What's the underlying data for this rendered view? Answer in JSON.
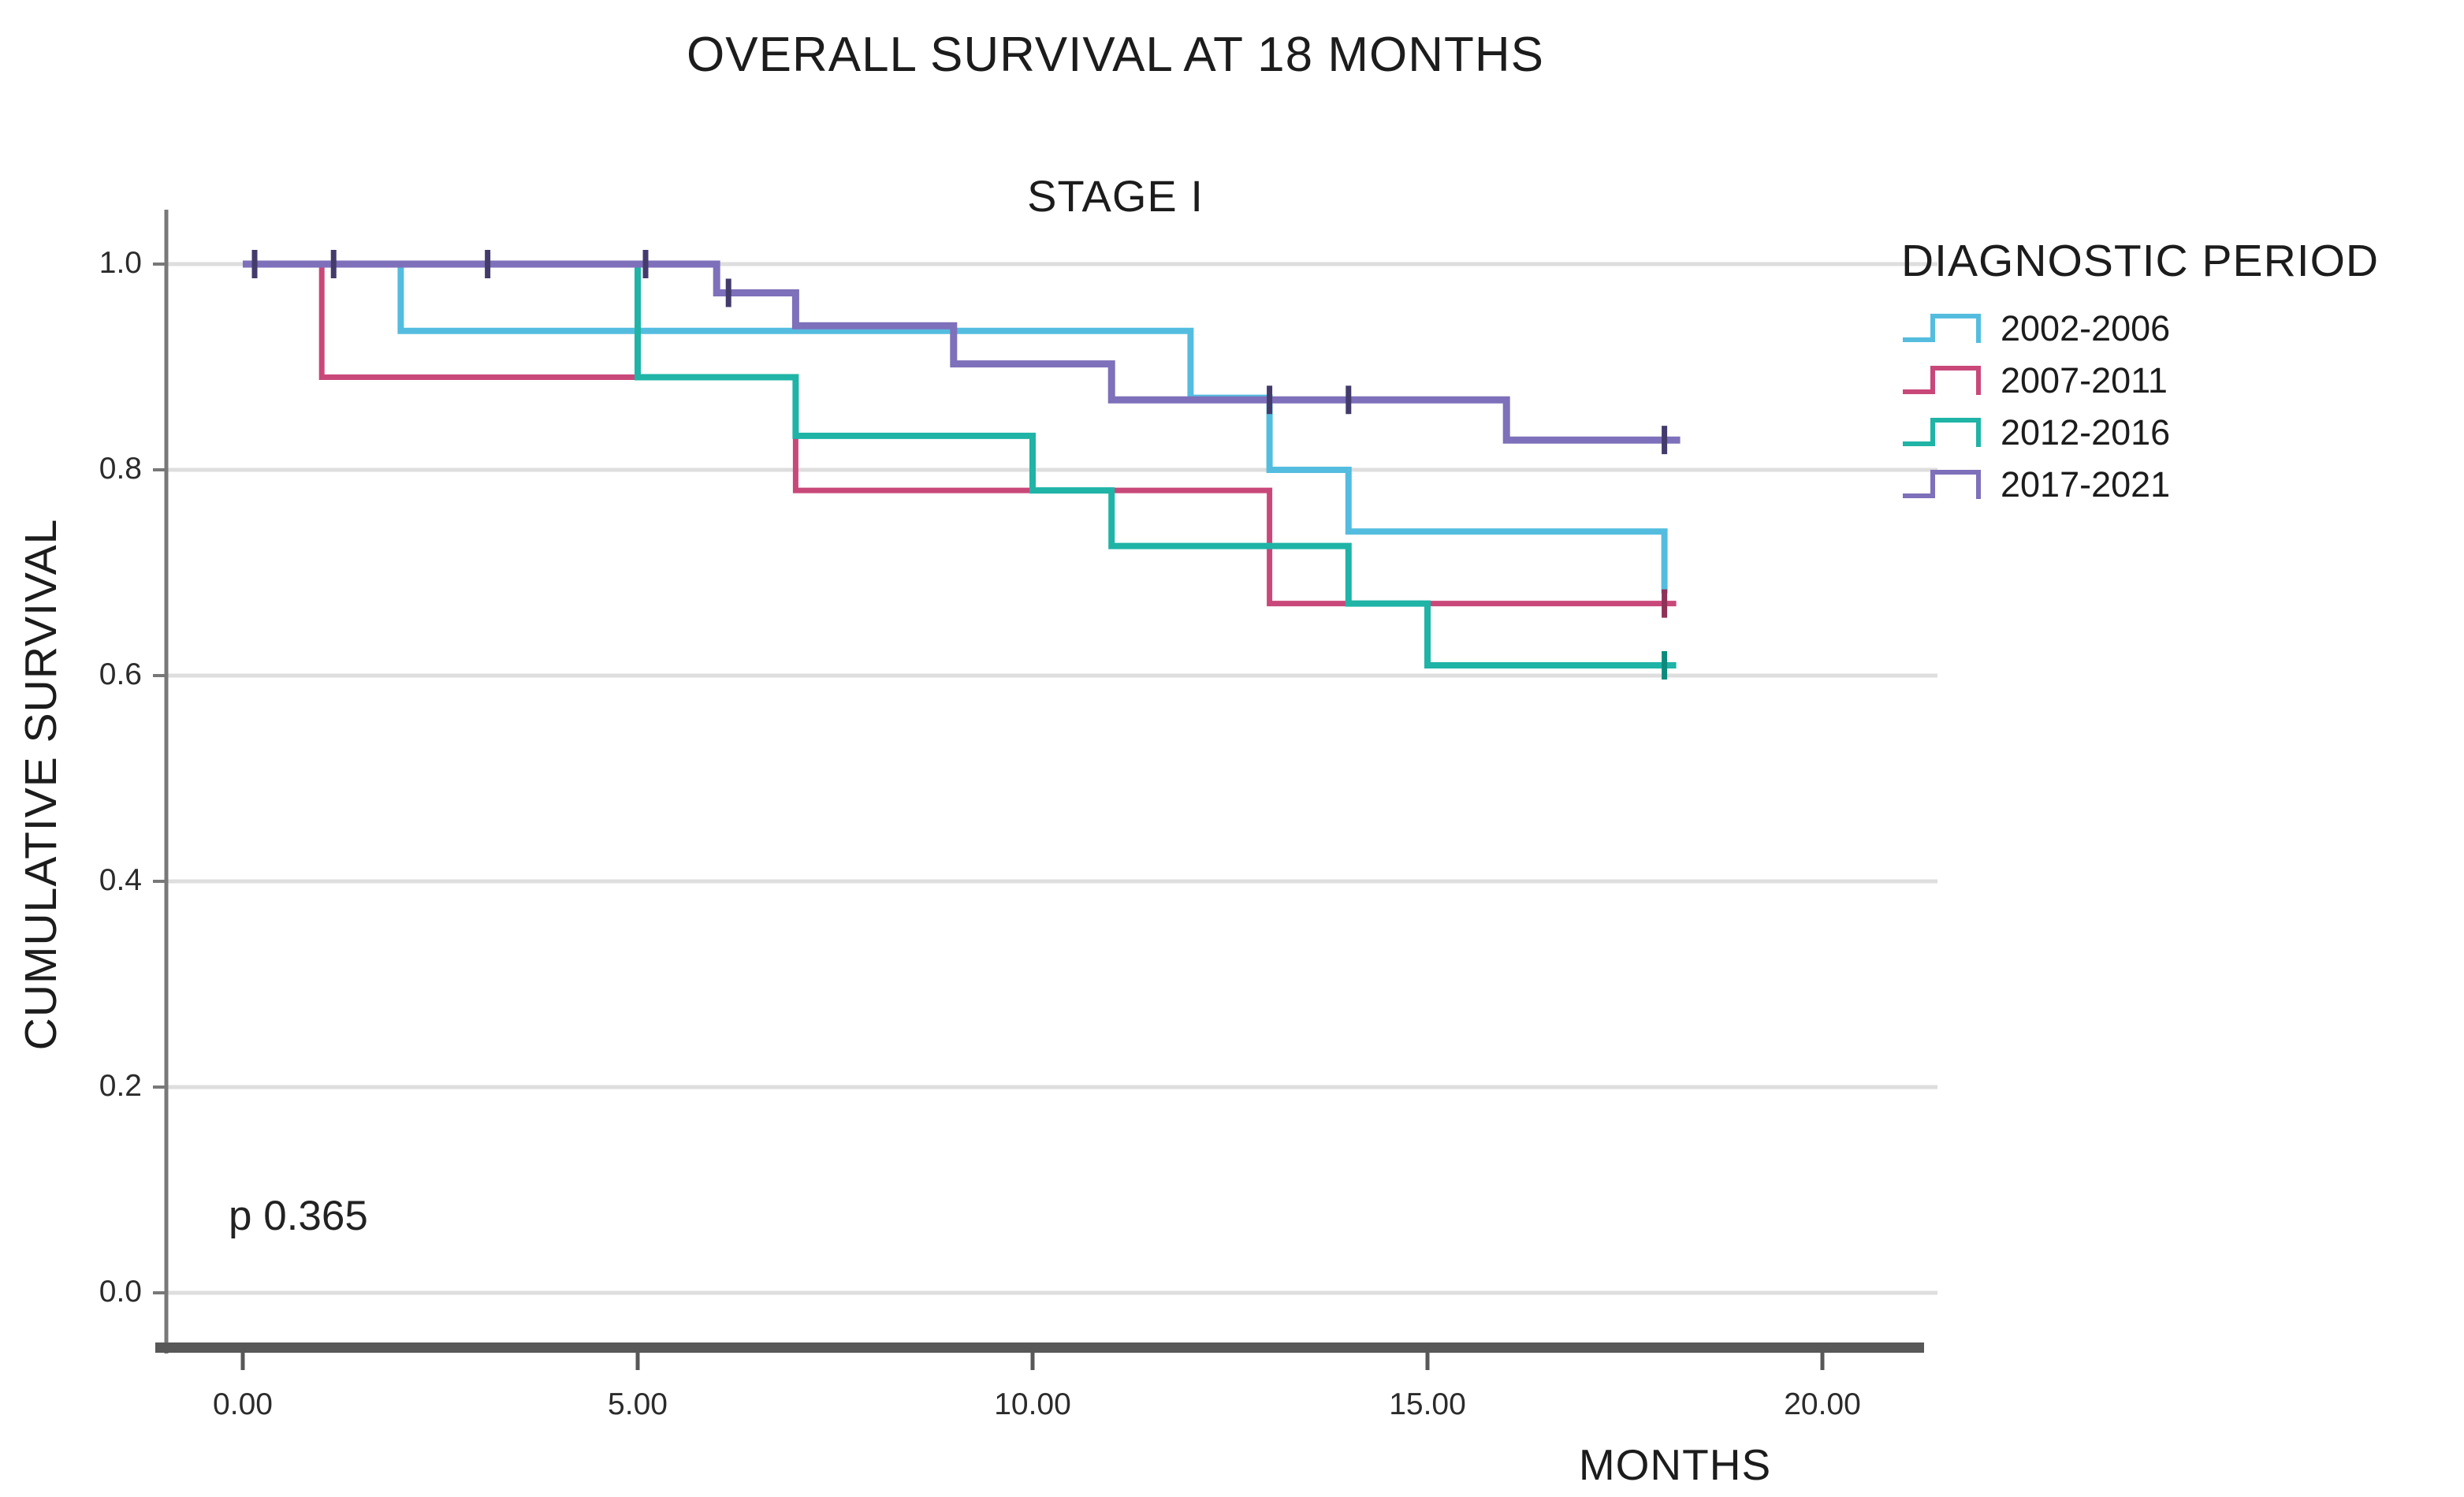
{
  "header": {
    "title": "OVERALL SURVIVAL AT 18 MONTHS",
    "subtitle": "STAGE I"
  },
  "chart_data": {
    "type": "line",
    "subtype": "kaplan-meier-step-curves",
    "title": "OVERALL SURVIVAL AT 18 MONTHS",
    "subtitle": "STAGE I",
    "xlabel": "MONTHS",
    "ylabel": "CUMULATIVE SURVIVAL",
    "p_value_label": "p 0.365",
    "legend_title": "DIAGNOSTIC PERIOD",
    "legend_position": "right",
    "grid": "horizontal",
    "xlim": [
      -1,
      21.5
    ],
    "ylim": [
      0.0,
      1.0
    ],
    "x_ticks": [
      {
        "value": 0,
        "label": "0.00"
      },
      {
        "value": 5,
        "label": "5.00"
      },
      {
        "value": 10,
        "label": "10.00"
      },
      {
        "value": 15,
        "label": "15.00"
      },
      {
        "value": 20,
        "label": "20.00"
      }
    ],
    "y_ticks": [
      {
        "value": 0.0,
        "label": "0.0"
      },
      {
        "value": 0.2,
        "label": "0.2"
      },
      {
        "value": 0.4,
        "label": "0.4"
      },
      {
        "value": 0.6,
        "label": "0.6"
      },
      {
        "value": 0.8,
        "label": "0.8"
      },
      {
        "value": 1.0,
        "label": "1.0"
      }
    ],
    "series": [
      {
        "name": "2002-2006",
        "color": "#54BDDF",
        "tick_color": "#2E93B8",
        "line_width": 8,
        "steps": [
          [
            0,
            1.0
          ],
          [
            2,
            1.0
          ],
          [
            2,
            0.935
          ],
          [
            12,
            0.935
          ],
          [
            12,
            0.87
          ],
          [
            13,
            0.87
          ],
          [
            13,
            0.8
          ],
          [
            14,
            0.8
          ],
          [
            14,
            0.74
          ],
          [
            18,
            0.74
          ],
          [
            18,
            0.68
          ]
        ],
        "censor_marks": []
      },
      {
        "name": "2007-2011",
        "color": "#C9487A",
        "tick_color": "#8E3258",
        "line_width": 7,
        "steps": [
          [
            0,
            1.0
          ],
          [
            1,
            1.0
          ],
          [
            1,
            0.89
          ],
          [
            7,
            0.89
          ],
          [
            7,
            0.78
          ],
          [
            13,
            0.78
          ],
          [
            13,
            0.67
          ],
          [
            18.15,
            0.67
          ]
        ],
        "censor_marks": [
          [
            18,
            0.67
          ]
        ]
      },
      {
        "name": "2012-2016",
        "color": "#1FB4A6",
        "tick_color": "#0D8A7E",
        "line_width": 8,
        "steps": [
          [
            0,
            1.0
          ],
          [
            5,
            1.0
          ],
          [
            5,
            0.89
          ],
          [
            7,
            0.89
          ],
          [
            7,
            0.833
          ],
          [
            10,
            0.833
          ],
          [
            10,
            0.78
          ],
          [
            11,
            0.78
          ],
          [
            11,
            0.726
          ],
          [
            14,
            0.726
          ],
          [
            14,
            0.67
          ],
          [
            15,
            0.67
          ],
          [
            15,
            0.61
          ],
          [
            18.15,
            0.61
          ]
        ],
        "censor_marks": [
          [
            18,
            0.61
          ]
        ]
      },
      {
        "name": "2017-2021",
        "color": "#7E70BA",
        "tick_color": "#433B6B",
        "line_width": 9,
        "steps": [
          [
            0,
            1.0
          ],
          [
            6,
            1.0
          ],
          [
            6,
            0.972
          ],
          [
            7,
            0.972
          ],
          [
            7,
            0.94
          ],
          [
            9,
            0.94
          ],
          [
            9,
            0.903
          ],
          [
            11,
            0.903
          ],
          [
            11,
            0.868
          ],
          [
            16,
            0.868
          ],
          [
            16,
            0.829
          ],
          [
            18.2,
            0.829
          ]
        ],
        "censor_marks": [
          [
            0.15,
            1.0
          ],
          [
            1.15,
            1.0
          ],
          [
            3.1,
            1.0
          ],
          [
            5.1,
            1.0
          ],
          [
            6.15,
            0.972
          ],
          [
            13,
            0.868
          ],
          [
            14,
            0.868
          ],
          [
            18,
            0.829
          ]
        ]
      }
    ]
  },
  "style_colors": {
    "grid_line": "#dedede",
    "y_axis": "#787878",
    "x_axis": "#585858",
    "text": "#1c1c1c"
  }
}
